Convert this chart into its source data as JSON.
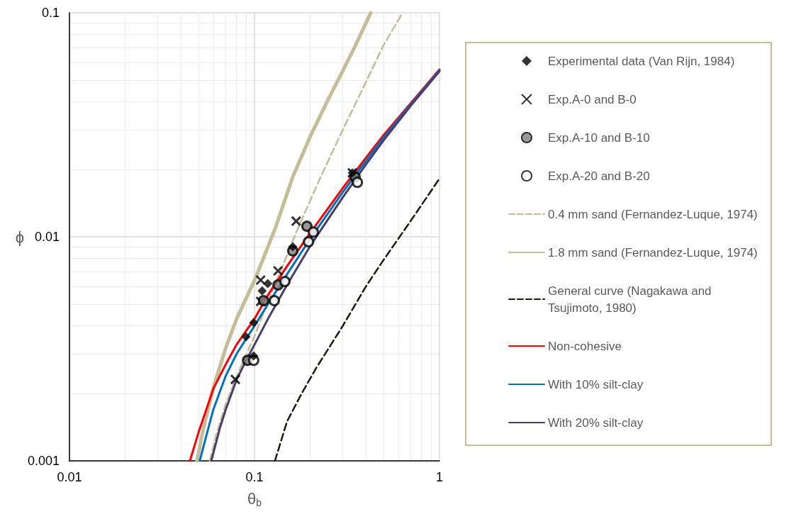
{
  "chart_data": {
    "type": "line",
    "xlabel": "θ$_{b}$",
    "ylabel": "ϕ",
    "log": "xy",
    "grid": true,
    "legend": "right",
    "xlim": [
      0.01,
      1
    ],
    "xticks": [
      0.01,
      0.1,
      1
    ],
    "ylim": [
      0.001,
      0.1
    ],
    "yticks": [
      0.001,
      0.01,
      0.1
    ],
    "series": [
      {
        "name": "Experimental data (Van Rijn, 1984)",
        "type": "scatter",
        "marker": "diamond",
        "color": "#000000",
        "x": [
          0.09,
          0.099,
          0.11,
          0.118,
          0.161,
          0.338,
          0.099
        ],
        "values": [
          0.00358,
          0.00414,
          0.00574,
          0.00618,
          0.00903,
          0.0193,
          0.00294
        ]
      },
      {
        "name": "Exp.A-0 and B-0",
        "type": "scatter",
        "marker": "cross",
        "color": "#000000",
        "x": [
          0.0788,
          0.108,
          0.108,
          0.134,
          0.168,
          0.338
        ],
        "values": [
          0.00231,
          0.00641,
          0.00515,
          0.00705,
          0.01175,
          0.0193
        ]
      },
      {
        "name": "Exp.A-10 and B-10",
        "type": "scatter",
        "marker": "circle",
        "color": "#808080",
        "x": [
          0.0917,
          0.112,
          0.134,
          0.161,
          0.192,
          0.35
        ],
        "values": [
          0.00281,
          0.00519,
          0.0061,
          0.00865,
          0.01115,
          0.0185
        ]
      },
      {
        "name": "Exp.A-20 and B-20",
        "type": "scatter",
        "marker": "circle",
        "color": "#ffffff",
        "x": [
          0.099,
          0.128,
          0.146,
          0.196,
          0.208,
          0.36
        ],
        "values": [
          0.00281,
          0.00519,
          0.00632,
          0.0095,
          0.0105,
          0.0175
        ]
      },
      {
        "name": "0.4 mm sand (Fernandez-Luque, 1974)",
        "type": "line",
        "line_style": "dashed",
        "color": "#c4bd97",
        "x": [
          0.0573,
          0.062,
          0.07,
          0.0845,
          0.1,
          0.12,
          0.141,
          0.17,
          0.2,
          0.228,
          0.3,
          0.4,
          0.5,
          0.632
        ],
        "values": [
          0.001,
          0.0013,
          0.0018,
          0.00264,
          0.0036,
          0.0053,
          0.0073,
          0.0107,
          0.0145,
          0.0185,
          0.03,
          0.049,
          0.072,
          0.1
        ]
      },
      {
        "name": "1.8 mm sand (Fernandez-Luque, 1974)",
        "type": "line",
        "line_style": "solid",
        "color": "#c4bd97",
        "x": [
          0.0489,
          0.052,
          0.0594,
          0.07,
          0.08,
          0.101,
          0.13,
          0.161,
          0.2,
          0.25,
          0.3,
          0.35,
          0.425
        ],
        "values": [
          0.001,
          0.0013,
          0.00207,
          0.0032,
          0.0043,
          0.0065,
          0.011,
          0.0185,
          0.028,
          0.041,
          0.055,
          0.071,
          0.1
        ]
      },
      {
        "name": "General curve (Nagakawa and Tsujimoto, 1980)",
        "type": "line",
        "line_style": "dashed",
        "color": "#1a1a0d",
        "x": [
          0.129,
          0.15,
          0.18,
          0.217,
          0.3,
          0.4,
          0.494,
          0.7,
          1
        ],
        "values": [
          0.001,
          0.0015,
          0.002,
          0.00262,
          0.004,
          0.006,
          0.0078,
          0.0118,
          0.0182
        ]
      },
      {
        "name": "Non-cohesive",
        "type": "line",
        "line_style": "solid",
        "color": "#ff0000",
        "x": [
          0.0448,
          0.05,
          0.06,
          0.07,
          0.08,
          0.09,
          0.1,
          0.12,
          0.15,
          0.2,
          0.3,
          0.4,
          0.5,
          0.7,
          1
        ],
        "values": [
          0.001,
          0.00135,
          0.0021,
          0.0027,
          0.0033,
          0.0038,
          0.0043,
          0.0056,
          0.0074,
          0.0104,
          0.0165,
          0.0225,
          0.0285,
          0.0395,
          0.0558
        ]
      },
      {
        "name": "With 10% silt-clay",
        "type": "line",
        "line_style": "solid",
        "color": "#0070c0",
        "x": [
          0.0506,
          0.055,
          0.06,
          0.07,
          0.08,
          0.09,
          0.1,
          0.12,
          0.15,
          0.2,
          0.3,
          0.4,
          0.5,
          0.7,
          1
        ],
        "values": [
          0.001,
          0.0013,
          0.0017,
          0.0024,
          0.003,
          0.0035,
          0.004,
          0.0051,
          0.0068,
          0.0098,
          0.0158,
          0.0218,
          0.0278,
          0.039,
          0.0553
        ]
      },
      {
        "name": "With 20% silt-clay",
        "type": "line",
        "line_style": "solid",
        "color": "#4b3c6e",
        "x": [
          0.0584,
          0.065,
          0.07,
          0.08,
          0.09,
          0.1,
          0.12,
          0.15,
          0.2,
          0.3,
          0.4,
          0.5,
          0.7,
          1
        ],
        "values": [
          0.001,
          0.0014,
          0.0017,
          0.0023,
          0.0028,
          0.0033,
          0.0044,
          0.0061,
          0.0091,
          0.015,
          0.021,
          0.027,
          0.0385,
          0.0548
        ]
      }
    ]
  }
}
